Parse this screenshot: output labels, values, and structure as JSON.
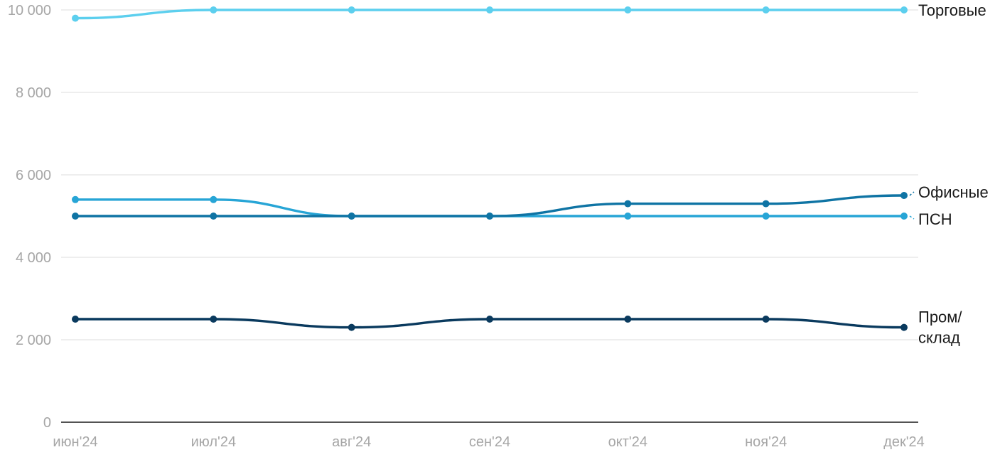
{
  "chart_data": {
    "type": "line",
    "categories": [
      "июн'24",
      "июл'24",
      "авг'24",
      "сен'24",
      "окт'24",
      "ноя'24",
      "дек'24"
    ],
    "y_ticks": [
      "0",
      "2 000",
      "4 000",
      "6 000",
      "8 000",
      "10 000"
    ],
    "ylim": [
      0,
      10000
    ],
    "grid": true,
    "series": [
      {
        "name": "Торговые",
        "label_lines": [
          "Торговые"
        ],
        "color": "#5ccfee",
        "values": [
          9800,
          10000,
          10000,
          10000,
          10000,
          10000,
          10000
        ]
      },
      {
        "name": "Офисные",
        "label_lines": [
          "Офисные"
        ],
        "color": "#0f74a4",
        "values": [
          5000,
          5000,
          5000,
          5000,
          5300,
          5300,
          5500
        ]
      },
      {
        "name": "ПСН",
        "label_lines": [
          "ПСН"
        ],
        "color": "#27a5d6",
        "values": [
          5400,
          5400,
          5000,
          5000,
          5000,
          5000,
          5000
        ]
      },
      {
        "name": "Пром/склад",
        "label_lines": [
          "Пром/",
          "склад"
        ],
        "color": "#0a3a5e",
        "values": [
          2500,
          2500,
          2300,
          2500,
          2500,
          2500,
          2300
        ]
      }
    ]
  }
}
